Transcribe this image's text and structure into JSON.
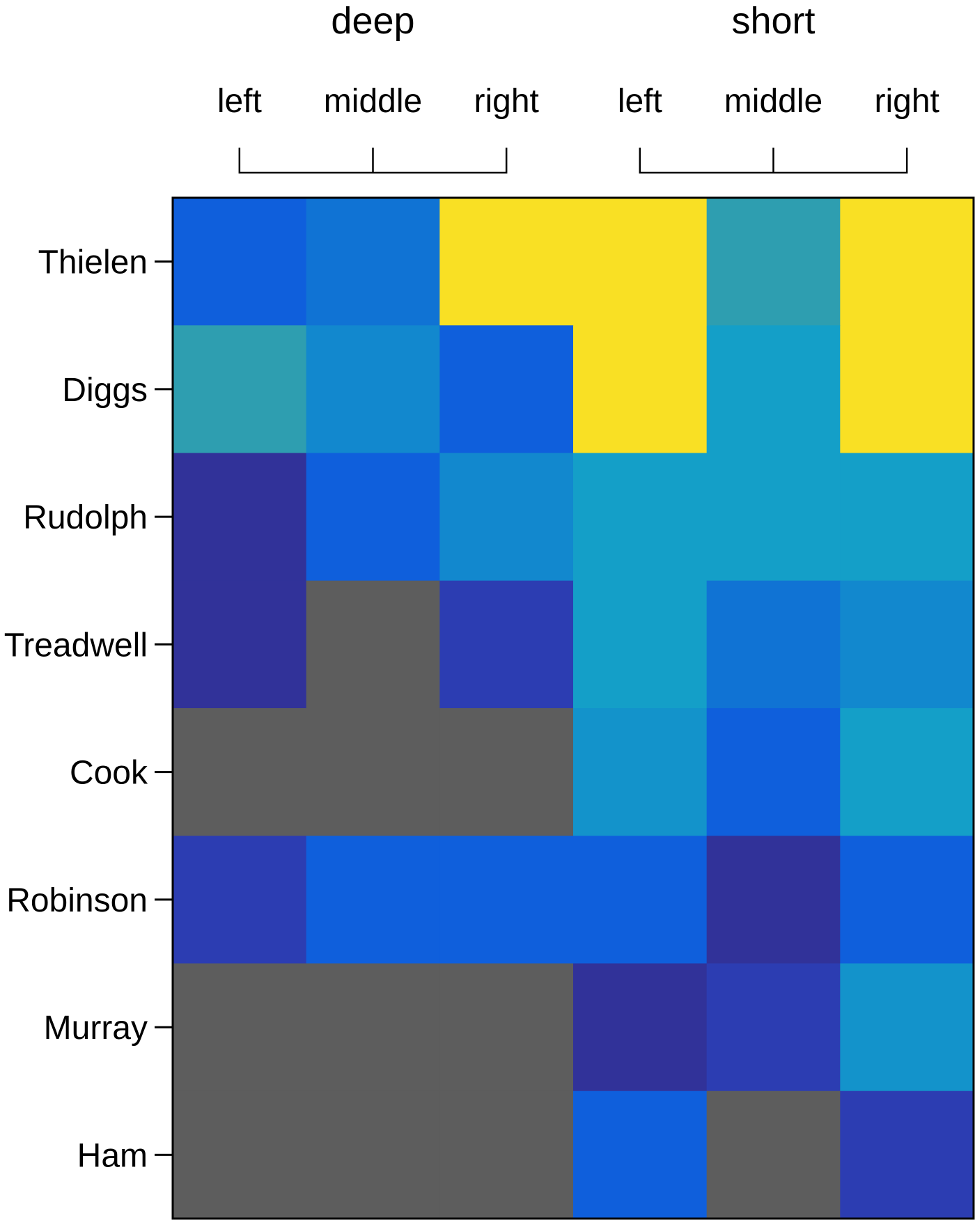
{
  "chart_data": {
    "type": "heatmap",
    "column_groups": [
      {
        "label": "deep",
        "columns": [
          "left",
          "middle",
          "right"
        ]
      },
      {
        "label": "short",
        "columns": [
          "left",
          "middle",
          "right"
        ]
      }
    ],
    "rows": [
      "Thielen",
      "Diggs",
      "Rudolph",
      "Treadwell",
      "Cook",
      "Robinson",
      "Murray",
      "Ham"
    ],
    "values": [
      [
        0.3,
        0.38,
        1.0,
        1.0,
        0.55,
        1.0
      ],
      [
        0.55,
        0.44,
        0.3,
        1.0,
        0.5,
        1.0
      ],
      [
        0.05,
        0.3,
        0.44,
        0.5,
        0.5,
        0.5
      ],
      [
        0.05,
        null,
        0.12,
        0.5,
        0.38,
        0.44
      ],
      [
        null,
        null,
        null,
        0.47,
        0.3,
        0.5
      ],
      [
        0.12,
        0.3,
        0.3,
        0.3,
        0.05,
        0.3
      ],
      [
        null,
        null,
        null,
        0.05,
        0.12,
        0.47
      ],
      [
        null,
        null,
        null,
        0.3,
        null,
        0.12
      ]
    ],
    "missing_color": "#5d5d5d",
    "colormap": "parula",
    "colors": {
      "low": "#352a87",
      "mid_blue": "#0f5fdc",
      "teal": "#149fc8",
      "high": "#f9e024"
    },
    "legend": "none"
  }
}
